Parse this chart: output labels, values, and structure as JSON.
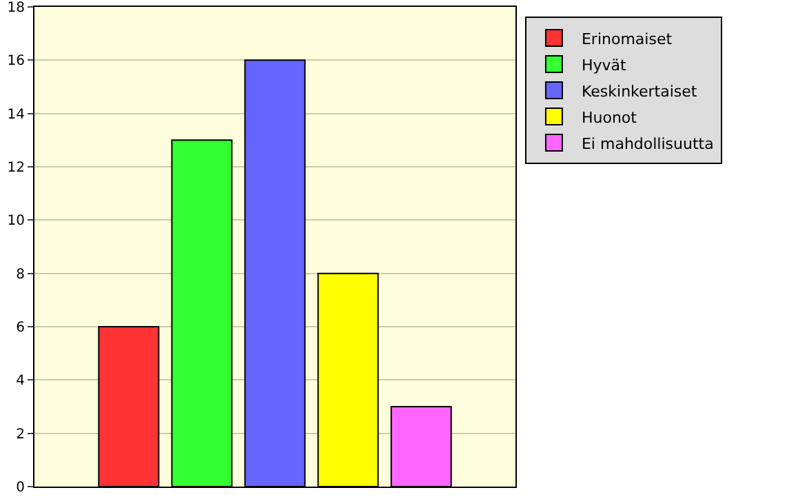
{
  "chart_data": {
    "type": "bar",
    "categories": [
      null
    ],
    "series": [
      {
        "name": "Erinomaiset",
        "color": "#ff3333",
        "values": [
          6
        ]
      },
      {
        "name": "Hyvät",
        "color": "#33ff33",
        "values": [
          13
        ]
      },
      {
        "name": "Keskinkertaiset",
        "color": "#6666ff",
        "values": [
          16
        ]
      },
      {
        "name": "Huonot",
        "color": "#ffff00",
        "values": [
          8
        ]
      },
      {
        "name": "Ei mahdollisuutta",
        "color": "#ff66ff",
        "values": [
          3
        ]
      }
    ],
    "ylim": [
      0,
      18
    ],
    "yticks": [
      0,
      2,
      4,
      6,
      8,
      10,
      12,
      14,
      16,
      18
    ],
    "grid": "y",
    "legend": "top right",
    "tick_labels": "y"
  }
}
